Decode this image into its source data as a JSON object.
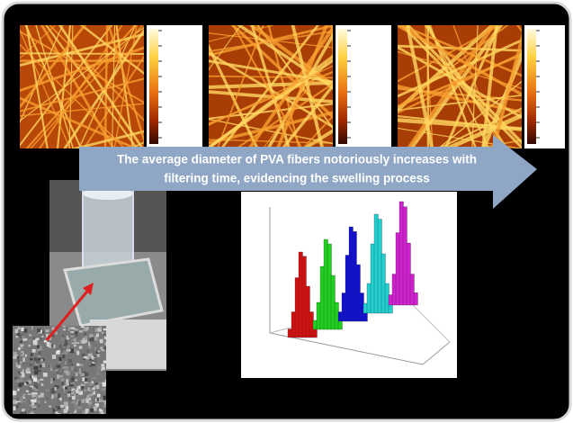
{
  "arrow": {
    "lines": [
      "The average diameter of PVA fibers notoriously increases with",
      "filtering time, evidencing the swelling process"
    ]
  }
}
